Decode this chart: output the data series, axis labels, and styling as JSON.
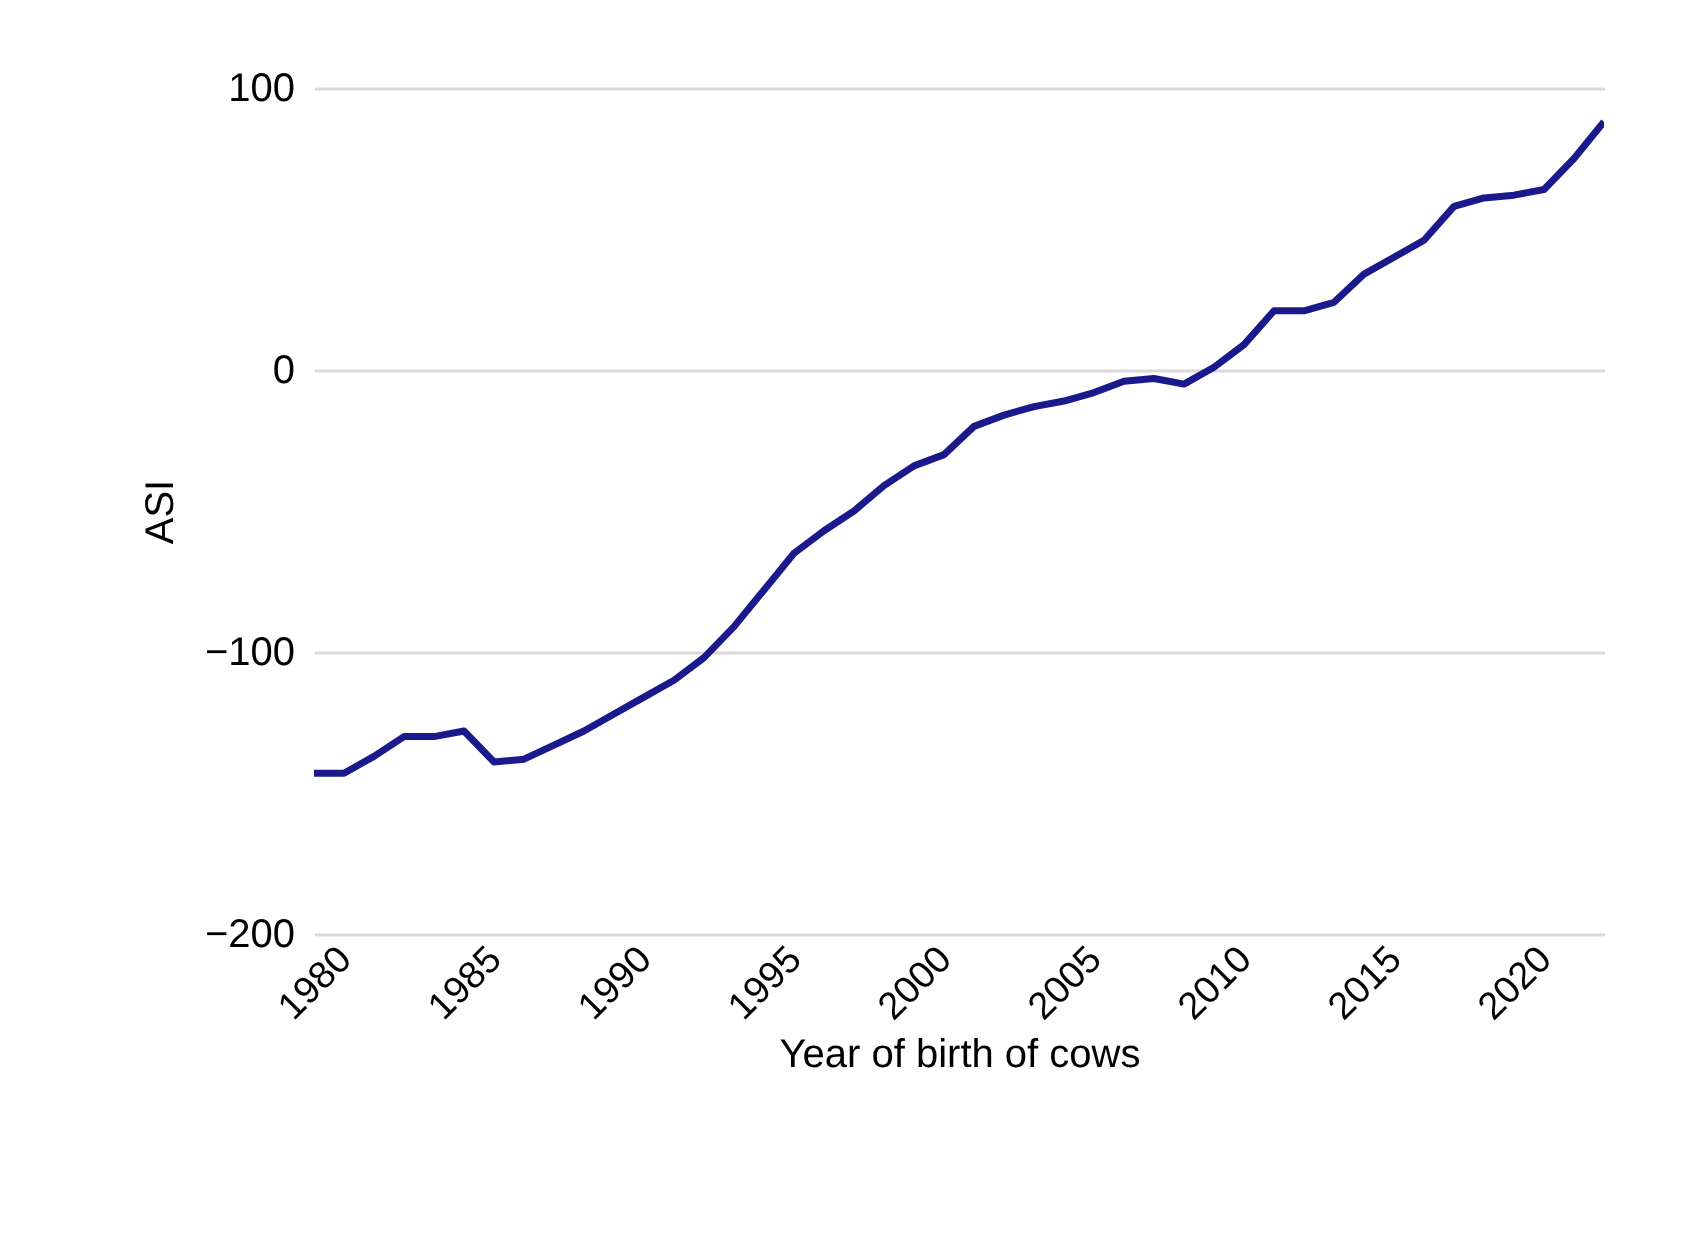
{
  "chart_data": {
    "type": "line",
    "xlabel": "Year of birth of cows",
    "ylabel": "ASI",
    "x": [
      1980,
      1981,
      1982,
      1983,
      1984,
      1985,
      1986,
      1987,
      1988,
      1989,
      1990,
      1991,
      1992,
      1993,
      1994,
      1995,
      1996,
      1997,
      1998,
      1999,
      2000,
      2001,
      2002,
      2003,
      2004,
      2005,
      2006,
      2007,
      2008,
      2009,
      2010,
      2011,
      2012,
      2013,
      2014,
      2015,
      2016,
      2017,
      2018,
      2019,
      2020,
      2021,
      2022,
      2023
    ],
    "series": [
      {
        "color": "#1a1a8c",
        "values": [
          -143,
          -143,
          -137,
          -130,
          -130,
          -128,
          -139,
          -138,
          -133,
          -128,
          -122,
          -116,
          -110,
          -102,
          -91,
          -78,
          -65,
          -57,
          -50,
          -41,
          -34,
          -30,
          -20,
          -16,
          -13,
          -11,
          -8,
          -4,
          -3,
          -5,
          1,
          9,
          21,
          21,
          24,
          34,
          40,
          46,
          58,
          61,
          62,
          64,
          75,
          88
        ]
      }
    ],
    "xlim": [
      1980,
      2023
    ],
    "xticks": [
      1980,
      1985,
      1990,
      1995,
      2000,
      2005,
      2010,
      2015,
      2020
    ],
    "ylim": [
      -200,
      100
    ],
    "yticks": [
      -200,
      -100,
      0,
      100
    ],
    "grid": "y",
    "marker": "none",
    "line_style": "solid"
  }
}
